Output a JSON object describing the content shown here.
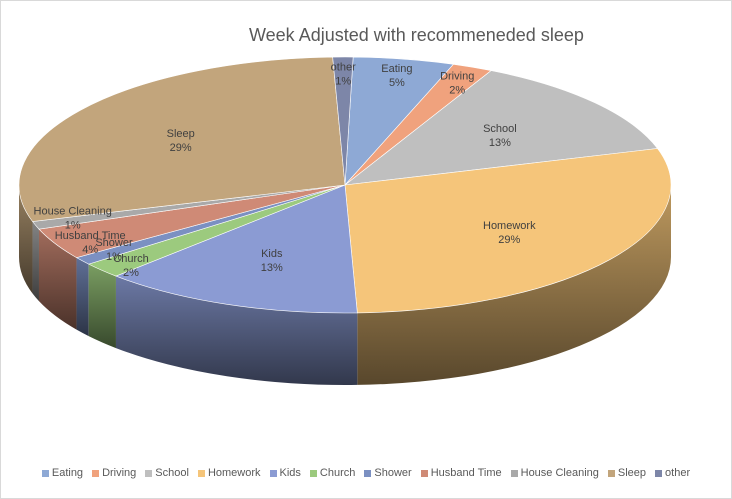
{
  "chart_data": {
    "type": "pie",
    "title": "Week Adjusted with recommeneded sleep",
    "legend_position": "bottom",
    "slices": [
      {
        "name": "Eating",
        "value": 5,
        "label": "5%",
        "color": "#8ea9d5"
      },
      {
        "name": "Driving",
        "value": 2,
        "label": "2%",
        "color": "#f0a27d"
      },
      {
        "name": "School",
        "value": 13,
        "label": "13%",
        "color": "#bfbfbf"
      },
      {
        "name": "Homework",
        "value": 29,
        "label": "29%",
        "color": "#f5c57a"
      },
      {
        "name": "Kids",
        "value": 13,
        "label": "13%",
        "color": "#8b9bd3"
      },
      {
        "name": "Church",
        "value": 2,
        "label": "2%",
        "color": "#9cca7e"
      },
      {
        "name": "Shower",
        "value": 1,
        "label": "1%",
        "color": "#7b90c2"
      },
      {
        "name": "Husband Time",
        "value": 4,
        "label": "4%",
        "color": "#cf8a76"
      },
      {
        "name": "House Cleaning",
        "value": 1,
        "label": "1%",
        "color": "#a9a9a9"
      },
      {
        "name": "Sleep",
        "value": 29,
        "label": "29%",
        "color": "#c2a57c"
      },
      {
        "name": "other",
        "value": 1,
        "label": "1%",
        "color": "#7d86a8"
      }
    ]
  }
}
